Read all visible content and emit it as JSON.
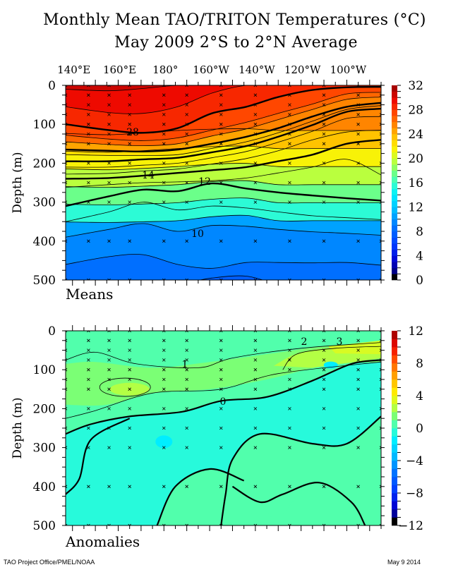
{
  "titles": {
    "line1": "Monthly Mean TAO/TRITON Temperatures (°C)",
    "line2": "May 2009    2°S to 2°N Average"
  },
  "footer": {
    "left": "TAO Project Office/PMEL/NOAA",
    "right": "May  9 2014"
  },
  "chart_data": [
    {
      "type": "heatmap",
      "subtype": "filled-contour",
      "panel_label": "Means",
      "xlabel": "",
      "ylabel": "Depth (m)",
      "x_tick_labels": [
        "140°E",
        "160°E",
        "180°",
        "160°W",
        "140°W",
        "120°W",
        "100°W"
      ],
      "x_ticks_lon": [
        140,
        160,
        180,
        200,
        220,
        240,
        260
      ],
      "xlim_lon": [
        137,
        275
      ],
      "y_tick_labels": [
        "0",
        "100",
        "200",
        "300",
        "400",
        "500"
      ],
      "ylim": [
        0,
        500
      ],
      "y_inverted": true,
      "colorbar": {
        "min": 0,
        "max": 32,
        "tick_labels": [
          "32",
          "28",
          "24",
          "20",
          "16",
          "12",
          "8",
          "4",
          "0"
        ],
        "step": 1
      },
      "contour_interval": 1,
      "labeled_contours": [
        {
          "value": 28,
          "label": "28"
        },
        {
          "value": 14,
          "label": "14"
        },
        {
          "value": 12,
          "label": "12"
        },
        {
          "value": 10,
          "label": "10"
        }
      ],
      "isotherm_depths": {
        "lon": [
          137,
          156,
          171,
          186,
          201,
          216,
          230,
          245,
          260,
          275
        ],
        "levels": {
          "30": [
            10,
            14,
            8,
            0,
            0,
            0,
            0,
            0,
            0,
            0
          ],
          "29": [
            55,
            70,
            72,
            55,
            20,
            0,
            0,
            0,
            0,
            0
          ],
          "28": [
            100,
            115,
            122,
            110,
            72,
            55,
            30,
            12,
            5,
            4
          ],
          "27": [
            128,
            138,
            142,
            135,
            115,
            95,
            72,
            48,
            22,
            18
          ],
          "26": [
            145,
            152,
            155,
            150,
            130,
            112,
            88,
            62,
            36,
            30
          ],
          "24": [
            165,
            168,
            170,
            165,
            150,
            132,
            110,
            80,
            55,
            45
          ],
          "22": [
            178,
            180,
            180,
            178,
            162,
            145,
            122,
            92,
            62,
            52
          ],
          "20": [
            195,
            195,
            190,
            186,
            172,
            156,
            132,
            102,
            68,
            60
          ],
          "18": [
            210,
            210,
            205,
            200,
            186,
            170,
            146,
            118,
            85,
            80
          ],
          "16": [
            228,
            226,
            220,
            215,
            202,
            188,
            168,
            140,
            120,
            115
          ],
          "14": [
            240,
            238,
            232,
            225,
            218,
            210,
            195,
            178,
            150,
            140
          ],
          "13": [
            262,
            255,
            250,
            248,
            245,
            238,
            225,
            210,
            190,
            230
          ],
          "12": [
            310,
            285,
            268,
            272,
            252,
            265,
            275,
            283,
            290,
            296
          ],
          "11": [
            350,
            325,
            300,
            320,
            310,
            315,
            325,
            335,
            340,
            345
          ],
          "10": [
            390,
            370,
            355,
            375,
            360,
            362,
            370,
            376,
            380,
            385
          ],
          "9": [
            460,
            440,
            435,
            460,
            470,
            455,
            455,
            456,
            455,
            462
          ],
          "8": [
            510,
            510,
            510,
            510,
            495,
            490,
            510,
            510,
            510,
            510
          ]
        }
      },
      "sample_columns_lon": [
        137,
        147,
        156,
        165,
        180,
        190,
        205,
        220,
        235,
        250,
        265,
        275
      ]
    },
    {
      "type": "heatmap",
      "subtype": "filled-contour",
      "panel_label": "Anomalies",
      "xlabel": "",
      "ylabel": "Depth (m)",
      "x_tick_labels": [],
      "xlim_lon": [
        137,
        275
      ],
      "y_tick_labels": [
        "0",
        "100",
        "200",
        "300",
        "400",
        "500"
      ],
      "ylim": [
        0,
        500
      ],
      "y_inverted": true,
      "colorbar": {
        "min": -12,
        "max": 12,
        "tick_labels": [
          "12",
          "8",
          "4",
          "0",
          "−4",
          "−8",
          "−12"
        ],
        "step": 1
      },
      "contour_interval": 1,
      "labeled_contours": [
        {
          "value": 3,
          "label": "3"
        },
        {
          "value": 2,
          "label": "2"
        },
        {
          "value": 1,
          "label": "1"
        },
        {
          "value": 0,
          "label": "0"
        }
      ],
      "regions": [
        {
          "name": "anomaly-plus1-band",
          "value_range": [
            1,
            2
          ]
        },
        {
          "name": "anomaly-plus2-core-west",
          "value_range": [
            2,
            3
          ]
        },
        {
          "name": "anomaly-plus3-core-east",
          "value_range": [
            3,
            4
          ]
        },
        {
          "name": "anomaly-zero-to-minus1-body",
          "value_range": [
            -1,
            0
          ]
        },
        {
          "name": "anomaly-zero-to-plus1-deep",
          "value_range": [
            0,
            1
          ]
        },
        {
          "name": "anomaly-minus1-pockets",
          "value_range": [
            -2,
            -1
          ]
        }
      ]
    }
  ]
}
